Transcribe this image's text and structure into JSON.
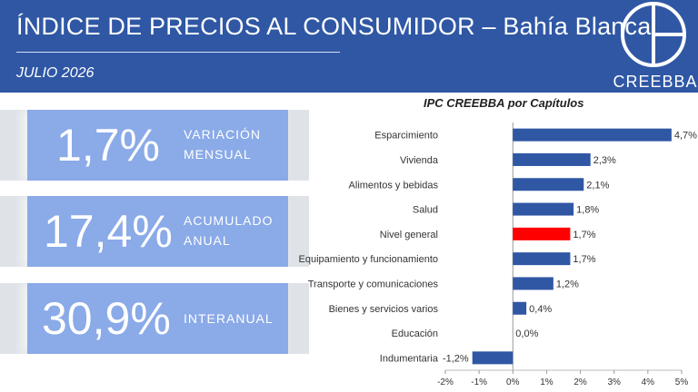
{
  "header": {
    "title": "ÍNDICE DE PRECIOS AL CONSUMIDOR – Bahía Blanca",
    "subtitle": "JULIO 2026",
    "logo_text": "CREEBBA"
  },
  "kpis": [
    {
      "value": "1,7%",
      "label_line1": "VARIACIÓN",
      "label_line2": "MENSUAL"
    },
    {
      "value": "17,4%",
      "label_line1": "ACUMULADO",
      "label_line2": "ANUAL"
    },
    {
      "value": "30,9%",
      "label_line1": "INTERANUAL",
      "label_line2": ""
    }
  ],
  "colors": {
    "header_bg": "#2f57a4",
    "kpi_box": "#8aaae8",
    "bar": "#2f57a4",
    "highlight_bar": "#ff0000"
  },
  "chart_data": {
    "type": "bar",
    "orientation": "horizontal",
    "title": "IPC CREEBBA por Capítulos",
    "categories": [
      "Esparcimiento",
      "Vivienda",
      "Alimentos y bebidas",
      "Salud",
      "Nivel general",
      "Equipamiento y funcionamiento",
      "Transporte y comunicaciones",
      "Bienes y servicios varios",
      "Educación",
      "Indumentaria"
    ],
    "values": [
      4.7,
      2.3,
      2.1,
      1.8,
      1.7,
      1.7,
      1.2,
      0.4,
      0.0,
      -1.2
    ],
    "data_labels": [
      "4,7%",
      "2,3%",
      "2,1%",
      "1,8%",
      "1,7%",
      "1,7%",
      "1,2%",
      "0,4%",
      "0,0%",
      "-1,2%"
    ],
    "highlight": "Nivel general",
    "xlim": [
      -2,
      5
    ],
    "x_ticks": [
      "-2%",
      "-1%",
      "0%",
      "1%",
      "2%",
      "3%",
      "4%",
      "5%"
    ],
    "grid": false,
    "legend": "none"
  }
}
